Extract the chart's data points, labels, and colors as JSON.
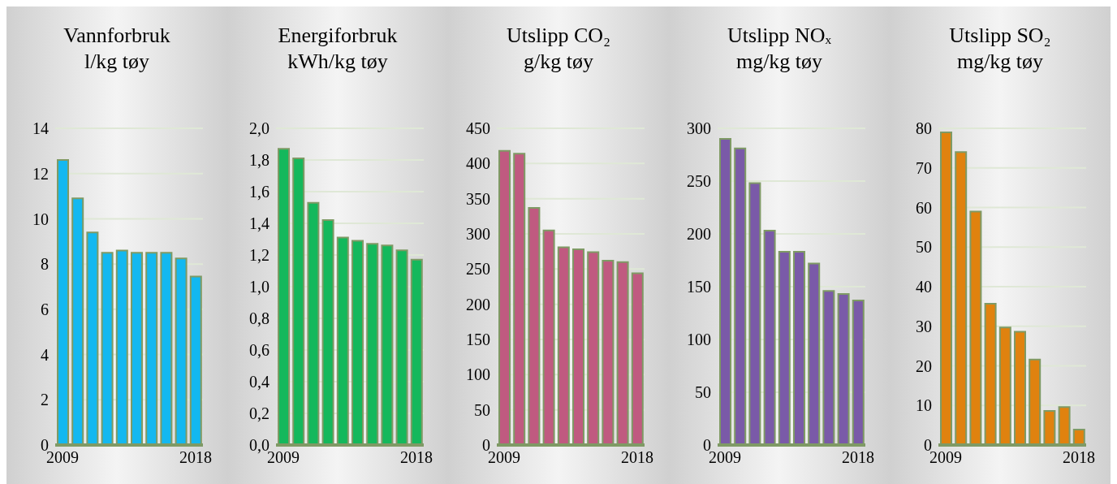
{
  "chart_data": [
    {
      "type": "bar",
      "title": "Vannforbruk",
      "subtitle": "l/kg tøy",
      "categories": [
        "2009",
        null,
        null,
        null,
        null,
        null,
        null,
        null,
        null,
        "2018"
      ],
      "values": [
        12.6,
        10.9,
        9.4,
        8.5,
        8.6,
        8.5,
        8.5,
        8.5,
        8.25,
        7.45
      ],
      "color": "#13b8f0",
      "ylim": [
        0,
        14
      ],
      "yticks": [
        0,
        2,
        4,
        6,
        8,
        10,
        12,
        14
      ],
      "grid": "y",
      "legend": false
    },
    {
      "type": "bar",
      "title": "Energiforbruk",
      "subtitle": "kWh/kg tøy",
      "categories": [
        "2009",
        null,
        null,
        null,
        null,
        null,
        null,
        null,
        null,
        "2018"
      ],
      "values": [
        1.87,
        1.81,
        1.53,
        1.42,
        1.31,
        1.29,
        1.27,
        1.26,
        1.23,
        1.17
      ],
      "color": "#14b85c",
      "ylim": [
        0,
        2
      ],
      "yticks": [
        {
          "value": 0,
          "label": "0,0"
        },
        {
          "value": 0.2,
          "label": "0,2"
        },
        {
          "value": 0.4,
          "label": "0,4"
        },
        {
          "value": 0.6,
          "label": "0,6"
        },
        {
          "value": 0.8,
          "label": "0,8"
        },
        {
          "value": 1,
          "label": "1,0"
        },
        {
          "value": 1.2,
          "label": "1,2"
        },
        {
          "value": 1.4,
          "label": "1,4"
        },
        {
          "value": 1.6,
          "label": "1,6"
        },
        {
          "value": 1.8,
          "label": "1,8"
        },
        {
          "value": 2,
          "label": "2,0"
        }
      ],
      "grid": "y",
      "legend": false
    },
    {
      "type": "bar",
      "title": "Utslipp CO₂",
      "subtitle": "g/kg tøy",
      "categories": [
        "2009",
        null,
        null,
        null,
        null,
        null,
        null,
        null,
        null,
        "2018"
      ],
      "values": [
        418,
        414,
        337,
        305,
        281,
        278,
        274,
        262,
        260,
        244
      ],
      "color": "#c05a80",
      "ylim": [
        0,
        450
      ],
      "yticks": [
        0,
        50,
        100,
        150,
        200,
        250,
        300,
        350,
        400,
        450
      ],
      "grid": "y",
      "legend": false
    },
    {
      "type": "bar",
      "title": "Utslipp NOₓ",
      "subtitle": "mg/kg tøy",
      "categories": [
        "2009",
        null,
        null,
        null,
        null,
        null,
        null,
        null,
        null,
        "2018"
      ],
      "values": [
        290,
        281,
        248,
        203,
        183,
        183,
        172,
        146,
        143,
        137
      ],
      "color": "#7a5aa8",
      "ylim": [
        0,
        300
      ],
      "yticks": [
        0,
        50,
        100,
        150,
        200,
        250,
        300
      ],
      "grid": "y",
      "legend": false
    },
    {
      "type": "bar",
      "title": "Utslipp SO₂",
      "subtitle": "mg/kg tøy",
      "categories": [
        "2009",
        null,
        null,
        null,
        null,
        null,
        null,
        null,
        null,
        "2018"
      ],
      "values": [
        79,
        74,
        59,
        35.7,
        29.7,
        28.6,
        21.6,
        8.6,
        9.6,
        3.9
      ],
      "color": "#e0820f",
      "ylim": [
        0,
        80
      ],
      "yticks": [
        0,
        10,
        20,
        30,
        40,
        50,
        60,
        70,
        80
      ],
      "grid": "y",
      "legend": false
    }
  ]
}
